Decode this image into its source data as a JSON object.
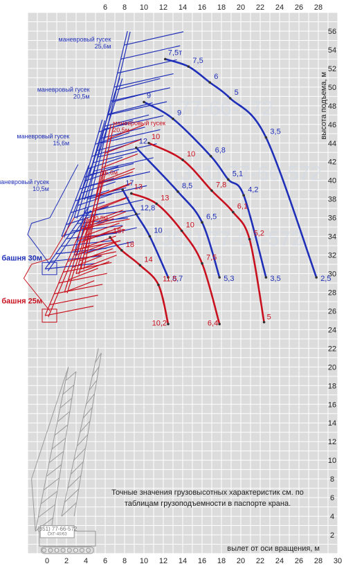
{
  "colors": {
    "blue": "#1f2fb8",
    "red": "#c8101e",
    "grid_bg": "#dcdcdc",
    "grid_line": "#ffffff",
    "crane_gray": "#9a9a9a"
  },
  "note": "Точные значения грузовысотных характеристик см. по таблицам грузоподъемности в паспорте крана.",
  "watermark": "(351) 77-66-572",
  "crane_plate": {
    "phone": "(351) 77-66-572",
    "model": "СКГ-40/63"
  },
  "chart_data": {
    "type": "line",
    "xlabel": "вылет от оси вращения, м",
    "ylabel": "высота подъема, м",
    "xlim": [
      -2,
      30
    ],
    "ylim": [
      0,
      58
    ],
    "x_ticks_top": [
      6,
      8,
      10,
      12,
      14,
      16,
      18,
      20,
      22,
      24,
      26,
      28
    ],
    "x_ticks_bottom": [
      0,
      2,
      4,
      6,
      8,
      10,
      12,
      14,
      16,
      18,
      20,
      22,
      24,
      26,
      28,
      30
    ],
    "y_ticks": [
      2,
      4,
      6,
      8,
      10,
      12,
      14,
      16,
      18,
      20,
      22,
      24,
      26,
      28,
      30,
      32,
      34,
      36,
      38,
      40,
      42,
      44,
      46,
      48,
      50,
      52,
      54,
      56
    ],
    "towers": [
      {
        "name": "башня 30м",
        "color": "blue"
      },
      {
        "name": "башня 25м",
        "color": "red"
      }
    ],
    "booms": [
      {
        "name": "маневровый гусек 25,6м",
        "color": "blue"
      },
      {
        "name": "маневровый гусек 20,5м",
        "color": "blue"
      },
      {
        "name": "маневровый гусек 15,6м",
        "color": "blue"
      },
      {
        "name": "маневровый гусек 10,5м",
        "color": "blue"
      },
      {
        "name": "маневровый гусек 20,5м",
        "color": "red"
      },
      {
        "name": "15,6м",
        "color": "red"
      },
      {
        "name": "10,5м",
        "color": "red"
      }
    ],
    "series": [
      {
        "color": "blue",
        "points": [
          {
            "x": 12.2,
            "y": 53.0,
            "label": "7,5т"
          },
          {
            "x": 14.6,
            "y": 52.2,
            "label": "7,5"
          },
          {
            "x": 16.8,
            "y": 50.5,
            "label": "6"
          },
          {
            "x": 18.9,
            "y": 48.8,
            "label": "5"
          },
          {
            "x": 22.6,
            "y": 44.6,
            "label": "3,5"
          },
          {
            "x": 27.8,
            "y": 29.6,
            "label": "2,5"
          }
        ]
      },
      {
        "color": "blue",
        "points": [
          {
            "x": 10.0,
            "y": 48.4,
            "label": "9"
          },
          {
            "x": 13.0,
            "y": 46.6,
            "label": "9"
          },
          {
            "x": 16.9,
            "y": 42.6,
            "label": "6,8"
          },
          {
            "x": 18.7,
            "y": 40.1,
            "label": "5,1"
          },
          {
            "x": 20.3,
            "y": 38.4,
            "label": "4,2"
          },
          {
            "x": 22.6,
            "y": 29.6,
            "label": "3,5"
          }
        ]
      },
      {
        "color": "blue",
        "points": [
          {
            "x": 9.2,
            "y": 43.5,
            "label": "12"
          },
          {
            "x": 13.5,
            "y": 38.8,
            "label": "8,5"
          },
          {
            "x": 16.0,
            "y": 35.5,
            "label": "6,5"
          },
          {
            "x": 17.8,
            "y": 29.6,
            "label": "5,3"
          }
        ]
      },
      {
        "color": "blue",
        "points": [
          {
            "x": 7.8,
            "y": 39.0,
            "label": "17"
          },
          {
            "x": 9.2,
            "y": 36.4,
            "label": "12,8"
          },
          {
            "x": 10.6,
            "y": 34.0,
            "label": "10"
          },
          {
            "x": 12.5,
            "y": 29.6,
            "label": "8,7"
          }
        ]
      },
      {
        "color": "red",
        "points": [
          {
            "x": 10.5,
            "y": 44.0,
            "label": "10"
          },
          {
            "x": 14.0,
            "y": 42.2,
            "label": "10"
          },
          {
            "x": 17.0,
            "y": 38.9,
            "label": "7,8"
          },
          {
            "x": 19.2,
            "y": 36.6,
            "label": "6,1"
          },
          {
            "x": 20.9,
            "y": 33.7,
            "label": "5,2"
          },
          {
            "x": 22.4,
            "y": 24.8,
            "label": "5"
          }
        ]
      },
      {
        "color": "red",
        "points": [
          {
            "x": 8.7,
            "y": 38.6,
            "label": "13"
          },
          {
            "x": 11.3,
            "y": 37.5,
            "label": "13"
          },
          {
            "x": 13.9,
            "y": 34.6,
            "label": "10"
          },
          {
            "x": 16.0,
            "y": 31.1,
            "label": "7,5"
          },
          {
            "x": 17.8,
            "y": 24.6,
            "label": "6,4"
          }
        ]
      },
      {
        "color": "red",
        "points": [
          {
            "x": 6.5,
            "y": 33.9,
            "label": "18т"
          },
          {
            "x": 7.7,
            "y": 32.5,
            "label": "18"
          },
          {
            "x": 9.6,
            "y": 30.9,
            "label": "14"
          },
          {
            "x": 11.5,
            "y": 28.8,
            "label": "11,5"
          },
          {
            "x": 12.5,
            "y": 24.6,
            "label": "10,2"
          }
        ]
      }
    ]
  }
}
